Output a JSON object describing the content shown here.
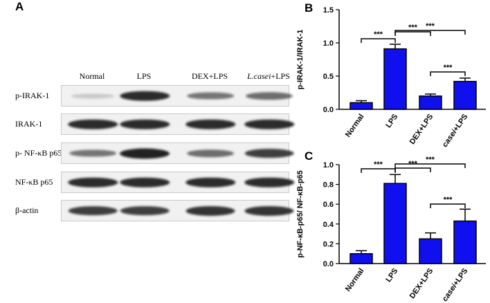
{
  "panels": {
    "a": "A",
    "b": "B",
    "c": "C"
  },
  "blot": {
    "lanes": [
      "Normal",
      "LPS",
      "DEX+LPS",
      "L.casei+LPS"
    ],
    "lane_italic_part": "L.casei",
    "lane_rest_part": "+LPS",
    "rows": [
      {
        "label": "p-IRAK-1",
        "intensity": [
          0.12,
          0.95,
          0.55,
          0.6
        ]
      },
      {
        "label": "IRAK-1",
        "intensity": [
          0.95,
          0.95,
          0.95,
          0.95
        ]
      },
      {
        "label": "p- NF-κB p65",
        "intensity": [
          0.55,
          1.0,
          0.6,
          0.85
        ]
      },
      {
        "label": "NF-κB p65",
        "intensity": [
          0.95,
          0.95,
          0.95,
          0.95
        ]
      },
      {
        "label": "β-actin",
        "intensity": [
          0.85,
          0.85,
          0.9,
          0.9
        ]
      }
    ],
    "band_color": "#1d1d1d"
  },
  "chart_data": [
    {
      "panel": "B",
      "type": "bar",
      "categories": [
        "Normal",
        "LPS",
        "DEX+LPS",
        "L. casei+LPS"
      ],
      "values": [
        0.1,
        0.91,
        0.2,
        0.42
      ],
      "errors": [
        0.03,
        0.07,
        0.03,
        0.05
      ],
      "ylabel": "p-IRAK-1/IRAK-1",
      "ylim": [
        0,
        1.5
      ],
      "yticks": [
        "0.0",
        "0.5",
        "1.0",
        "1.5"
      ],
      "bar_color": "#1010ee",
      "significance": [
        {
          "from": 0,
          "to": 1,
          "label": "***"
        },
        {
          "from": 1,
          "to": 2,
          "label": "***"
        },
        {
          "from": 1,
          "to": 3,
          "label": "***"
        },
        {
          "from": 2,
          "to": 3,
          "label": "***"
        }
      ]
    },
    {
      "panel": "C",
      "type": "bar",
      "categories": [
        "Normal",
        "LPS",
        "DEX+LPS",
        "L. casei+LPS"
      ],
      "values": [
        0.1,
        0.81,
        0.25,
        0.43
      ],
      "errors": [
        0.03,
        0.09,
        0.06,
        0.12
      ],
      "ylabel": "p-NF-κB-p65/ NF-κB-p65",
      "ylim": [
        0,
        1.0
      ],
      "yticks": [
        "0.0",
        "0.2",
        "0.4",
        "0.6",
        "0.8",
        "1.0"
      ],
      "bar_color": "#1010ee",
      "significance": [
        {
          "from": 0,
          "to": 1,
          "label": "***"
        },
        {
          "from": 1,
          "to": 2,
          "label": "***"
        },
        {
          "from": 1,
          "to": 3,
          "label": "***"
        },
        {
          "from": 2,
          "to": 3,
          "label": "***"
        }
      ]
    }
  ]
}
